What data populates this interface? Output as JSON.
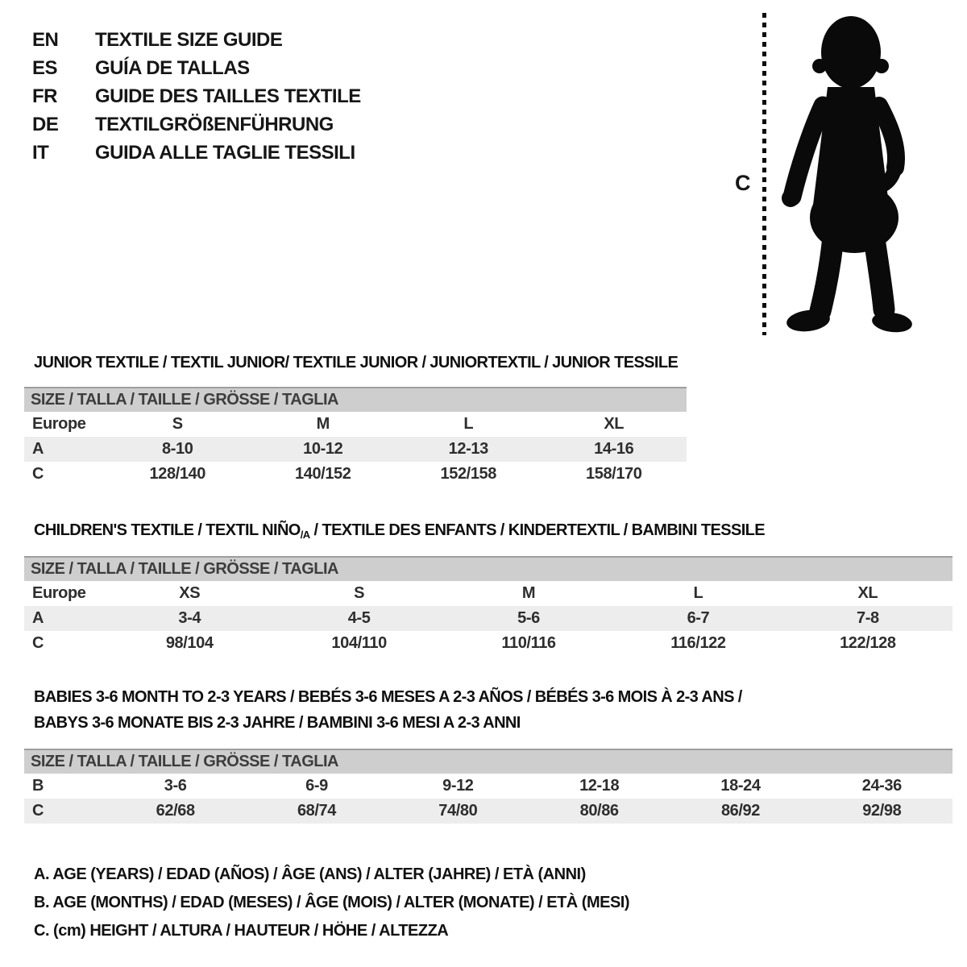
{
  "header": {
    "languages": [
      {
        "code": "EN",
        "title": "TEXTILE SIZE GUIDE"
      },
      {
        "code": "ES",
        "title": "GUÍA DE TALLAS"
      },
      {
        "code": "FR",
        "title": "GUIDE DES TAILLES TEXTILE"
      },
      {
        "code": "DE",
        "title": "TEXTILGRÖßENFÜHRUNG"
      },
      {
        "code": "IT",
        "title": "GUIDA ALLE TAGLIE TESSILI"
      }
    ]
  },
  "figure": {
    "icon": "toddler-silhouette",
    "measure_label": "C"
  },
  "sections": [
    {
      "id": "junior",
      "title_lines": [
        [
          {
            "text": "JUNIOR TEXTILE / TEXTIL JUNIOR/ TEXTILE JUNIOR / JUNIORTEXTIL / JUNIOR TESSILE"
          }
        ]
      ],
      "size_header": "SIZE / TALLA / TAILLE / GRÖSSE / TAGLIA",
      "rows": [
        {
          "label": "Europe",
          "shaded": false,
          "values": [
            "S",
            "M",
            "L",
            "XL"
          ]
        },
        {
          "label": "A",
          "shaded": true,
          "values": [
            "8-10",
            "10-12",
            "12-13",
            "14-16"
          ]
        },
        {
          "label": "C",
          "shaded": false,
          "values": [
            "128/140",
            "140/152",
            "152/158",
            "158/170"
          ]
        }
      ]
    },
    {
      "id": "children",
      "title_lines": [
        [
          {
            "text": "CHILDREN'S TEXTILE / TEXTIL NIÑO"
          },
          {
            "text": "/A",
            "sub": true
          },
          {
            "text": " / TEXTILE DES ENFANTS / KINDERTEXTIL / BAMBINI TESSILE"
          }
        ]
      ],
      "size_header": "SIZE / TALLA / TAILLE / GRÖSSE / TAGLIA",
      "rows": [
        {
          "label": "Europe",
          "shaded": false,
          "values": [
            "XS",
            "S",
            "M",
            "L",
            "XL"
          ]
        },
        {
          "label": "A",
          "shaded": true,
          "values": [
            "3-4",
            "4-5",
            "5-6",
            "6-7",
            "7-8"
          ]
        },
        {
          "label": "C",
          "shaded": false,
          "values": [
            "98/104",
            "104/110",
            "110/116",
            "116/122",
            "122/128"
          ]
        }
      ]
    },
    {
      "id": "babies",
      "title_lines": [
        [
          {
            "text": "BABIES 3-6 MONTH TO 2-3 YEARS / BEBÉS 3-6 MESES A 2-3 AÑOS / BÉBÉS 3-6 MOIS À 2-3 ANS /"
          }
        ],
        [
          {
            "text": "BABYS 3-6 MONATE BIS 2-3 JAHRE / BAMBINI 3-6 MESI A 2-3 ANNI"
          }
        ]
      ],
      "size_header": "SIZE / TALLA / TAILLE / GRÖSSE / TAGLIA",
      "rows": [
        {
          "label": "B",
          "shaded": false,
          "values": [
            "3-6",
            "6-9",
            "9-12",
            "12-18",
            "18-24",
            "24-36"
          ]
        },
        {
          "label": "C",
          "shaded": true,
          "values": [
            "62/68",
            "68/74",
            "74/80",
            "80/86",
            "86/92",
            "92/98"
          ]
        }
      ]
    }
  ],
  "legend": {
    "lines": [
      "A. AGE (YEARS) / EDAD (AÑOS) / ÂGE (ANS) / ALTER (JAHRE) / ETÀ (ANNI)",
      "B. AGE (MONTHS) / EDAD (MESES) / ÂGE (MOIS) / ALTER (MONATE) / ETÀ (MESI)",
      "C. (cm) HEIGHT / ALTURA / HAUTEUR / HÖHE / ALTEZZA"
    ]
  },
  "colors": {
    "header_bar_gray": "#cecece",
    "header_bar_edge": "#9e9e9e",
    "row_stripe_gray": "#ededed",
    "text_black": "#161616",
    "silhouette_black": "#0a0a0a"
  }
}
